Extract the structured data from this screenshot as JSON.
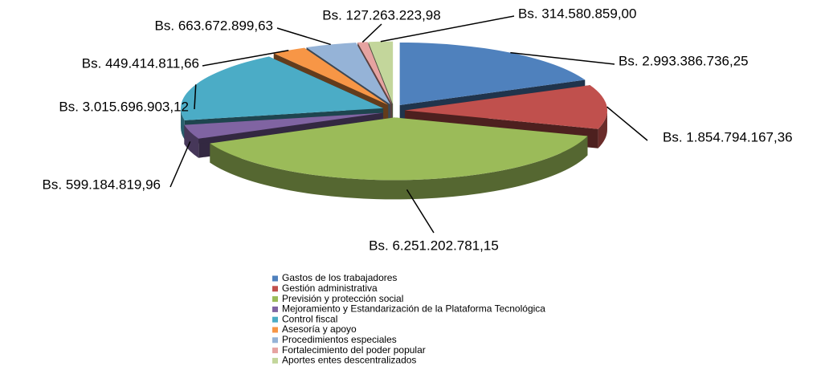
{
  "chart_data": {
    "type": "pie",
    "categories": [
      "Gastos de los trabajadores",
      "Gestión administrativa",
      "Previsión y protección social",
      "Mejoramiento y Estandarización de la Plataforma Tecnológica",
      "Control fiscal",
      "Asesoría y apoyo",
      "Procedimientos especiales",
      "Fortalecimiento del poder popular",
      "Aportes entes descentralizados"
    ],
    "values": [
      2993386736.25,
      1854794167.36,
      6251202781.15,
      599184819.96,
      3015696903.12,
      449414811.66,
      663672899.63,
      127263223.98,
      314580859.0
    ],
    "value_labels": [
      "Bs. 2.993.386.736,25",
      "Bs. 1.854.794.167,36",
      "Bs. 6.251.202.781,15",
      "Bs. 599.184.819,96",
      "Bs. 3.015.696.903,12",
      "Bs. 449.414.811,66",
      "Bs. 663.672.899,63",
      "Bs. 127.263.223,98",
      "Bs. 314.580.859,00"
    ],
    "colors": [
      "#4f81bd",
      "#c0504d",
      "#9bbb59",
      "#8064a2",
      "#4bacc6",
      "#f79646",
      "#95b3d7",
      "#e6a3a1",
      "#c3d69b"
    ],
    "legend": "bottom"
  }
}
